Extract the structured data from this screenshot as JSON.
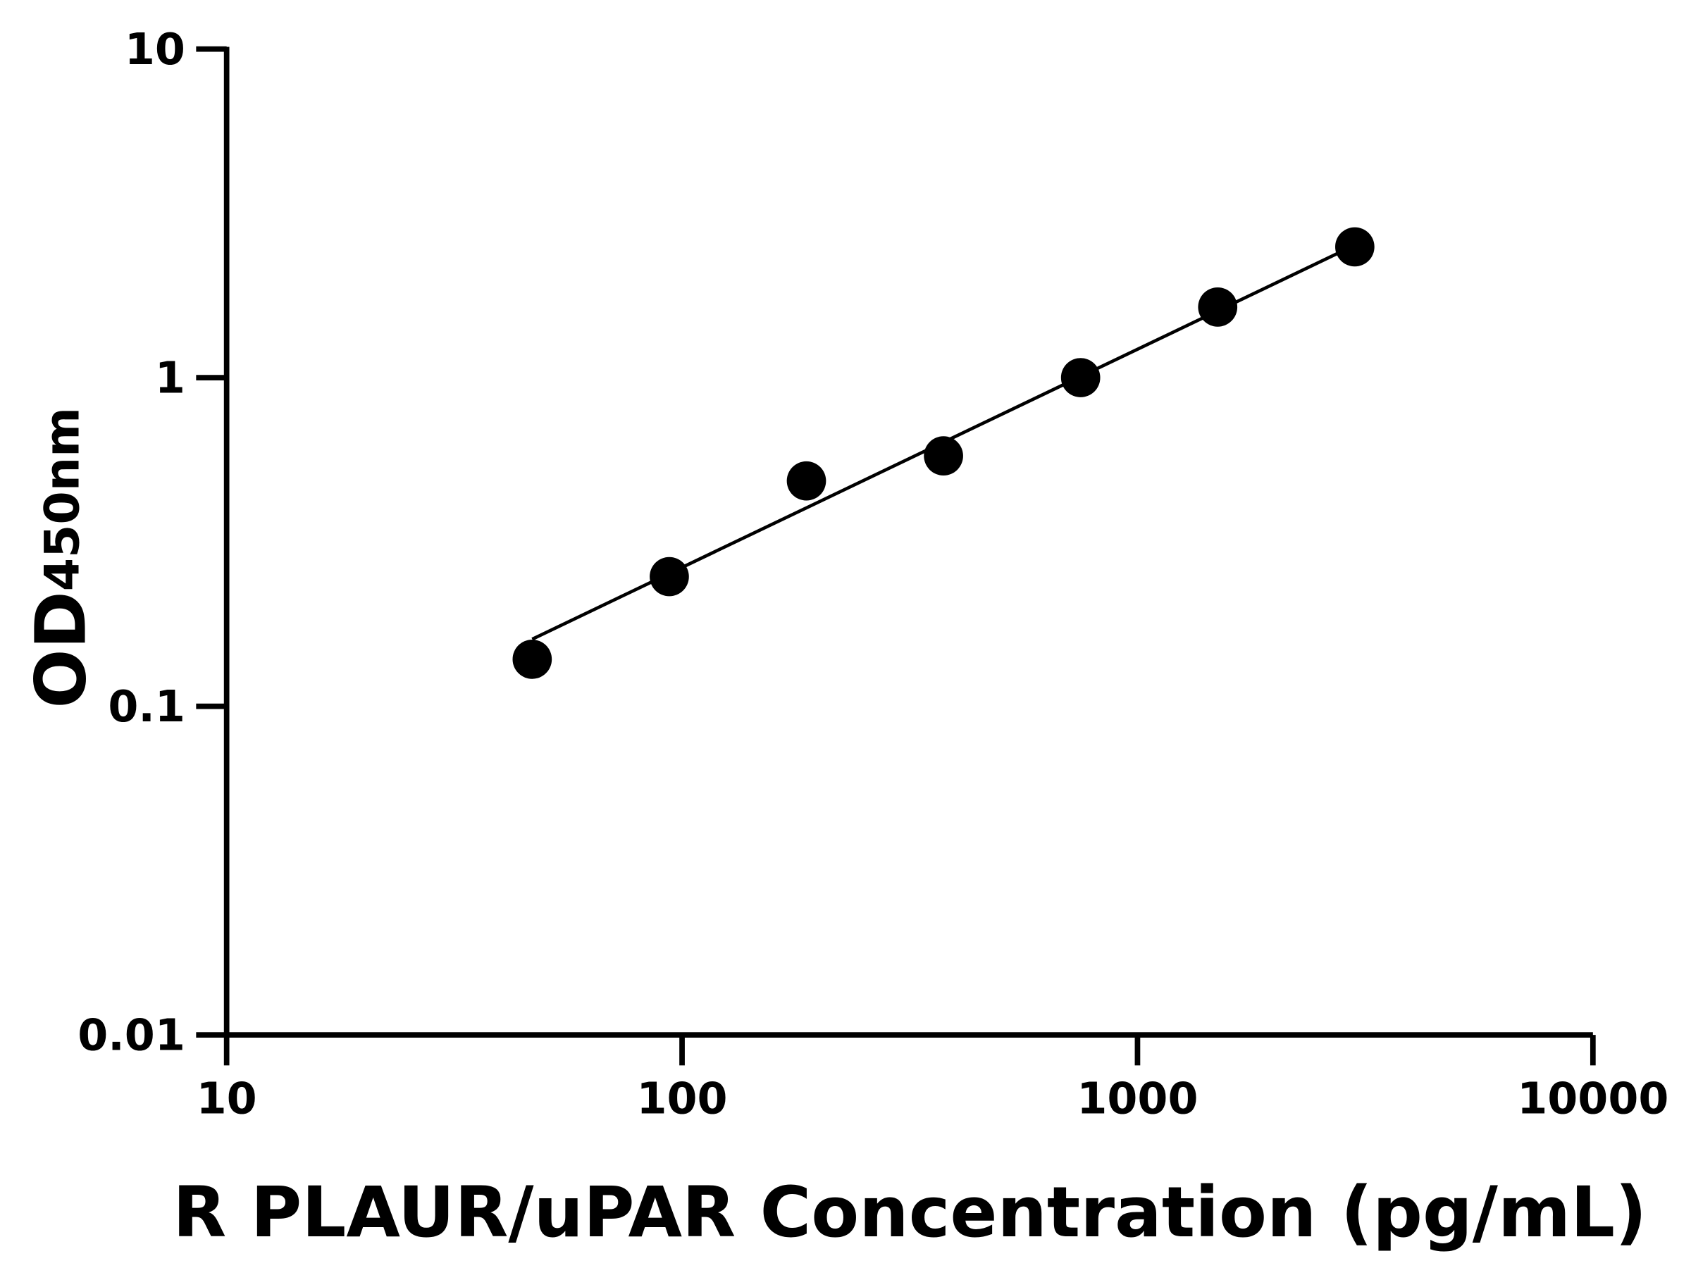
{
  "chart_data": {
    "type": "scatter",
    "xlabel": "R PLAUR/uPAR Concentration (pg/mL)",
    "ylabel": "OD",
    "ylabel_sub": "450nm",
    "x_scale": "log",
    "y_scale": "log",
    "xlim": [
      10,
      10000
    ],
    "ylim": [
      0.01,
      10
    ],
    "x_ticks": [
      "10",
      "100",
      "1000",
      "10000"
    ],
    "y_ticks": [
      "0.01",
      "0.1",
      "1",
      "10"
    ],
    "grid": false,
    "series": [
      {
        "x": [
          46.875,
          93.75,
          187.5,
          375,
          750,
          1500,
          3000
        ],
        "y": [
          0.139,
          0.248,
          0.485,
          0.578,
          1.0,
          1.64,
          2.5
        ]
      }
    ],
    "fit_line": {
      "x": [
        46.875,
        3000
      ],
      "y": [
        0.16,
        2.53
      ]
    },
    "colors": {
      "points": "#000000",
      "line": "#000000"
    }
  }
}
